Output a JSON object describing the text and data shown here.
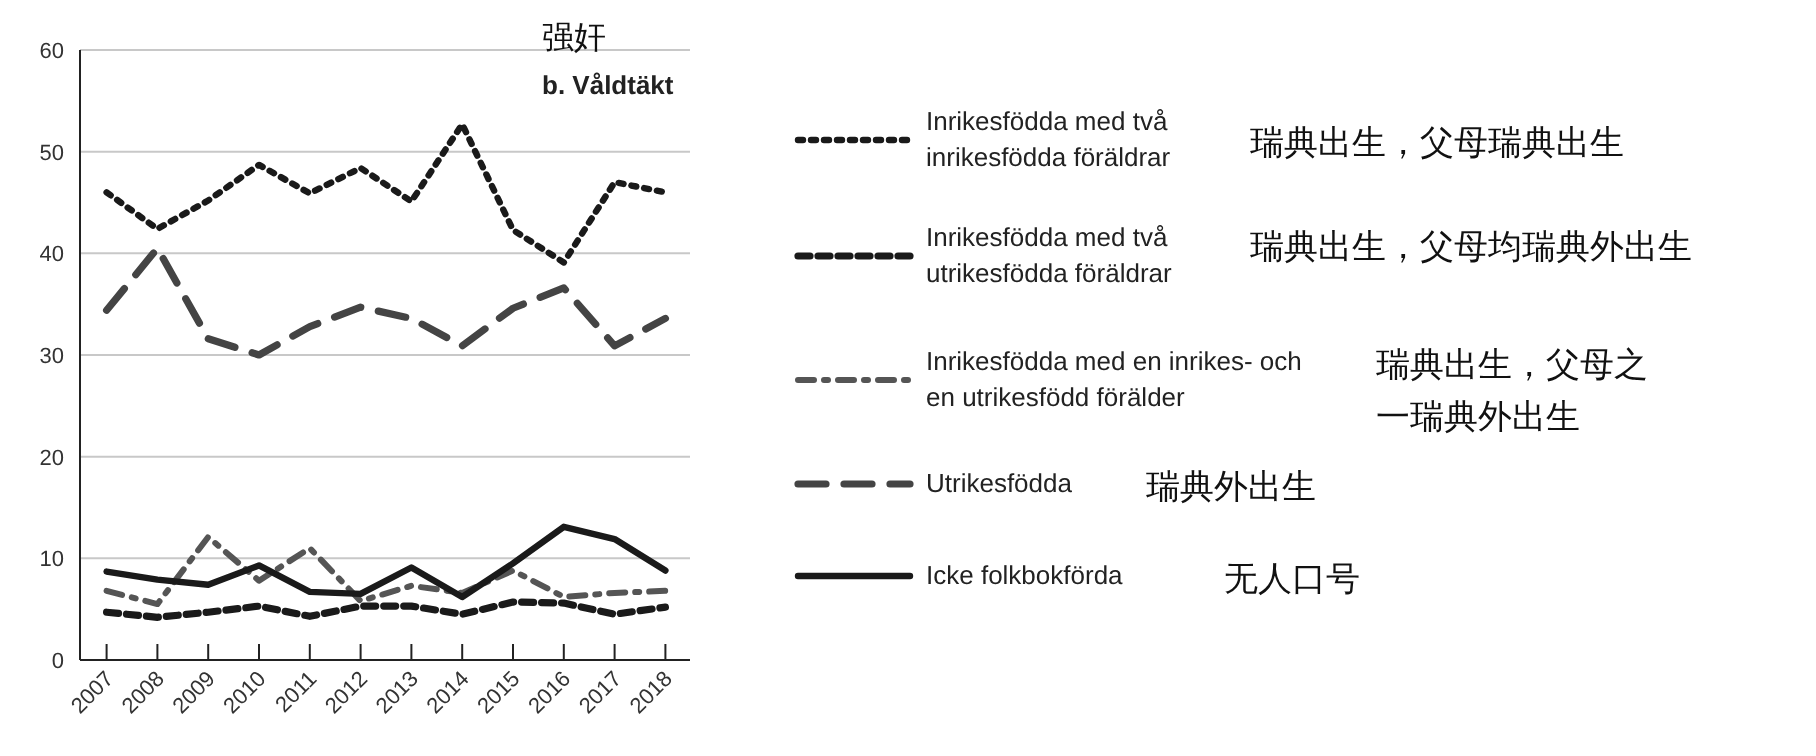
{
  "chart_data": {
    "type": "line",
    "title": "强奸",
    "subtitle": "b. Våldtäkt",
    "categories": [
      "2007",
      "2008",
      "2009",
      "2010",
      "2011",
      "2012",
      "2013",
      "2014",
      "2015",
      "2016",
      "2017",
      "2018"
    ],
    "ylim": [
      0,
      60
    ],
    "yticks": [
      0,
      10,
      20,
      30,
      40,
      50,
      60
    ],
    "grid": "y",
    "legend": "right",
    "marker": "none",
    "series": [
      {
        "name": "Inrikesfödda med två inrikesfödda föräldrar",
        "color": "#1a1a1a",
        "line_style": "dotted",
        "values": [
          46.0,
          42.4,
          45.2,
          48.7,
          45.9,
          48.4,
          45.1,
          52.7,
          42.3,
          39.1,
          47.0,
          46.0
        ]
      },
      {
        "name": "Inrikesfödda med två utrikesfödda föräldrar",
        "color": "#1a1a1a",
        "line_style": "dashed",
        "values": [
          4.7,
          4.2,
          4.7,
          5.3,
          4.3,
          5.3,
          5.3,
          4.5,
          5.7,
          5.6,
          4.5,
          5.2
        ]
      },
      {
        "name": "Inrikesfödda med en inrikes- och en utrikesfödd förälder",
        "color": "#555555",
        "line_style": "dashdot",
        "values": [
          6.8,
          5.5,
          12.1,
          7.8,
          11.0,
          5.8,
          7.3,
          6.6,
          8.8,
          6.2,
          6.6,
          6.8
        ]
      },
      {
        "name": "Utrikesfödda",
        "color": "#444444",
        "line_style": "longdash",
        "values": [
          34.4,
          40.5,
          31.6,
          30.0,
          32.8,
          34.7,
          33.6,
          30.9,
          34.6,
          36.6,
          30.9,
          33.6
        ]
      },
      {
        "name": "Icke folkbokförda",
        "color": "#1a1a1a",
        "line_style": "solid",
        "values": [
          8.7,
          7.9,
          7.4,
          9.3,
          6.7,
          6.5,
          9.1,
          6.2,
          9.5,
          13.1,
          11.9,
          8.8
        ]
      }
    ],
    "annotations": [
      "瑞典出生，父母瑞典出生",
      "瑞典出生，父母均瑞典外出生",
      "瑞典出生，父母之一瑞典外出生",
      "瑞典外出生",
      "无人口号"
    ]
  }
}
